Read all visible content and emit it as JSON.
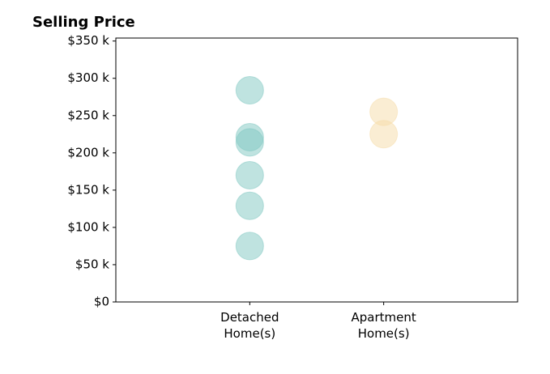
{
  "chart_data": {
    "type": "strip",
    "title": "Selling Price",
    "categories": [
      "Detached\nHome(s)",
      "Apartment\nHome(s)"
    ],
    "series": [
      {
        "color": "#80c8c2",
        "values": [
          284000,
          221000,
          214000,
          170000,
          129000,
          75000
        ]
      },
      {
        "color": "#f5dca8",
        "values": [
          255000,
          225000
        ]
      }
    ],
    "alpha": 0.5,
    "xlim": [
      -1,
      2
    ],
    "ylim": [
      0,
      354000
    ],
    "yticks": [
      {
        "value": 0,
        "label": "$0"
      },
      {
        "value": 50000,
        "label": "$50 k"
      },
      {
        "value": 100000,
        "label": "$100 k"
      },
      {
        "value": 150000,
        "label": "$150 k"
      },
      {
        "value": 200000,
        "label": "$200 k"
      },
      {
        "value": 250000,
        "label": "$250 k"
      },
      {
        "value": 300000,
        "label": "$300 k"
      },
      {
        "value": 350000,
        "label": "$350 k"
      }
    ],
    "grid": false
  }
}
